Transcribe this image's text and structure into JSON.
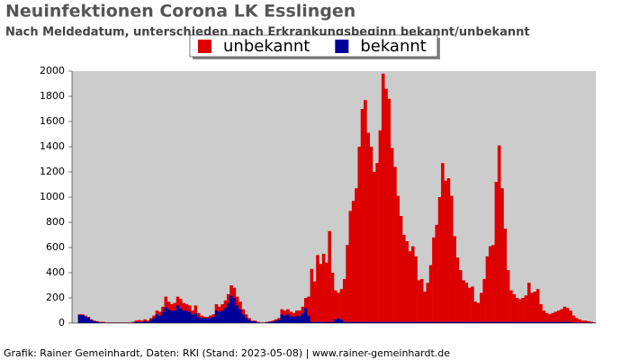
{
  "chart_data": {
    "type": "stacked_bar",
    "title": "Neuinfektionen Corona LK Esslingen",
    "subtitle": "Nach Meldedatum, unterschieden nach Erkrankungsbeginn bekannt/unbekannt",
    "footer": "Grafik: Rainer Gemeinhardt, Daten: RKI (Stand: 2023-05-08) | www.rainer-gemeinhardt.de",
    "categories": [
      null,
      null,
      null,
      null,
      null,
      null,
      null,
      null,
      null,
      null,
      null,
      null,
      null,
      null,
      null,
      null,
      null,
      null,
      null,
      null,
      null,
      null,
      null,
      null,
      null,
      null,
      null,
      null,
      null,
      null,
      null,
      null,
      null,
      null,
      null,
      null,
      null,
      null,
      null,
      null,
      null,
      null,
      null,
      null,
      null,
      null,
      null,
      null,
      null,
      null,
      null,
      null,
      null,
      null,
      null,
      null,
      null,
      null,
      null,
      null,
      null,
      null,
      null,
      null,
      null,
      null,
      null,
      null,
      null,
      null,
      null,
      null,
      null,
      null,
      null,
      null,
      null,
      null,
      null,
      null,
      null,
      null,
      null,
      null,
      null,
      null,
      null,
      null,
      null,
      null,
      null,
      null,
      null,
      null,
      null,
      null,
      null,
      null,
      null,
      null,
      null,
      null,
      null,
      null,
      null,
      null,
      null,
      null,
      null,
      null,
      null,
      null,
      null,
      null,
      null,
      null,
      null,
      null,
      null,
      null,
      null,
      null,
      null,
      null,
      null,
      null,
      null,
      null,
      null,
      null,
      null,
      null,
      null,
      null,
      null,
      null,
      null,
      null,
      null,
      null,
      null,
      null,
      null,
      null,
      null,
      null,
      null,
      null,
      null,
      null,
      null,
      null,
      null,
      null,
      null,
      null,
      null,
      null,
      null,
      null,
      null,
      null,
      null,
      null,
      null,
      null,
      null,
      null,
      null,
      null,
      null,
      null,
      null,
      null,
      null,
      null
    ],
    "series": [
      {
        "name": "bekannt",
        "color": "#000099",
        "values": [
          0,
          0,
          65,
          65,
          55,
          45,
          25,
          15,
          10,
          5,
          5,
          3,
          3,
          3,
          3,
          3,
          3,
          3,
          3,
          3,
          5,
          10,
          10,
          10,
          15,
          10,
          25,
          40,
          70,
          60,
          90,
          130,
          110,
          100,
          100,
          140,
          120,
          100,
          100,
          90,
          70,
          80,
          50,
          40,
          40,
          40,
          45,
          50,
          100,
          90,
          100,
          120,
          160,
          220,
          200,
          140,
          110,
          70,
          45,
          25,
          15,
          15,
          5,
          3,
          3,
          6,
          10,
          12,
          20,
          25,
          70,
          60,
          70,
          55,
          50,
          60,
          55,
          80,
          120,
          60,
          10,
          10,
          10,
          10,
          10,
          10,
          10,
          10,
          30,
          40,
          30,
          10,
          10,
          10,
          10,
          10,
          10,
          10,
          10,
          10,
          10,
          10,
          10,
          10,
          10,
          10,
          10,
          10,
          10,
          10,
          10,
          10,
          10,
          10,
          10,
          10,
          10,
          10,
          10,
          10,
          10,
          10,
          10,
          10,
          10,
          10,
          10,
          10,
          10,
          10,
          10,
          10,
          10,
          10,
          10,
          10,
          10,
          10,
          10,
          10,
          10,
          10,
          10,
          10,
          10,
          10,
          10,
          10,
          10,
          10,
          10,
          10,
          10,
          10,
          10,
          10,
          10,
          10,
          10,
          10,
          10,
          10,
          10,
          10,
          10,
          10,
          10,
          10,
          5,
          5,
          5,
          5,
          5,
          5,
          5,
          2
        ]
      },
      {
        "name": "unbekannt",
        "color": "#dd0000",
        "values": [
          0,
          0,
          5,
          5,
          5,
          5,
          5,
          5,
          5,
          5,
          5,
          2,
          2,
          2,
          2,
          2,
          2,
          2,
          2,
          2,
          5,
          10,
          15,
          10,
          15,
          10,
          15,
          20,
          30,
          30,
          40,
          80,
          60,
          50,
          60,
          70,
          70,
          60,
          50,
          50,
          30,
          60,
          30,
          20,
          10,
          10,
          15,
          20,
          50,
          40,
          50,
          60,
          70,
          80,
          80,
          70,
          60,
          40,
          25,
          15,
          5,
          5,
          5,
          2,
          2,
          4,
          5,
          8,
          10,
          15,
          40,
          40,
          40,
          35,
          30,
          40,
          45,
          50,
          80,
          150,
          420,
          320,
          530,
          460,
          540,
          470,
          720,
          390,
          230,
          200,
          240,
          340,
          610,
          880,
          960,
          1060,
          1390,
          1690,
          1760,
          1500,
          1390,
          1190,
          1260,
          1520,
          1970,
          1850,
          1770,
          1380,
          1230,
          1000,
          840,
          690,
          640,
          560,
          600,
          520,
          330,
          340,
          240,
          310,
          450,
          670,
          770,
          990,
          1260,
          1120,
          1140,
          1000,
          680,
          510,
          410,
          330,
          310,
          270,
          280,
          160,
          150,
          230,
          340,
          520,
          600,
          610,
          1110,
          1400,
          1060,
          740,
          410,
          250,
          220,
          190,
          180,
          190,
          210,
          310,
          230,
          240,
          260,
          140,
          90,
          70,
          60,
          70,
          80,
          90,
          100,
          120,
          110,
          90,
          55,
          35,
          25,
          15,
          15,
          10,
          5,
          3
        ]
      }
    ],
    "legend_order": [
      1,
      0
    ],
    "ylim": [
      0,
      2000
    ],
    "yticks": [
      0,
      200,
      400,
      600,
      800,
      1000,
      1200,
      1400,
      1600,
      1800,
      2000
    ],
    "grid": false
  }
}
